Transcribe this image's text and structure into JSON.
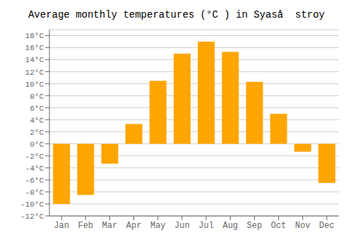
{
  "chart_data": {
    "type": "bar",
    "title": "Average monthly temperatures (°C ) in Syaså  stroy",
    "categories": [
      "Jan",
      "Feb",
      "Mar",
      "Apr",
      "May",
      "Jun",
      "Jul",
      "Aug",
      "Sep",
      "Oct",
      "Nov",
      "Dec"
    ],
    "values": [
      -10,
      -8.5,
      -3.3,
      3.3,
      10.5,
      15,
      17,
      15.3,
      10.3,
      5,
      -1.3,
      -6.5
    ],
    "color": "#FFA500",
    "ylim": [
      -12,
      19
    ],
    "yticks": [
      {
        "value": -12,
        "label": "-12°C"
      },
      {
        "value": -10,
        "label": "-10°C"
      },
      {
        "value": -8,
        "label": "-8°C"
      },
      {
        "value": -6,
        "label": "-6°C"
      },
      {
        "value": -4,
        "label": "-4°C"
      },
      {
        "value": -2,
        "label": "-2°C"
      },
      {
        "value": 0,
        "label": "0°C"
      },
      {
        "value": 2,
        "label": "2°C"
      },
      {
        "value": 4,
        "label": "4°C"
      },
      {
        "value": 6,
        "label": "6°C"
      },
      {
        "value": 8,
        "label": "8°C"
      },
      {
        "value": 10,
        "label": "10°C"
      },
      {
        "value": 12,
        "label": "12°C"
      },
      {
        "value": 14,
        "label": "14°C"
      },
      {
        "value": 16,
        "label": "16°C"
      },
      {
        "value": 18,
        "label": "18°C"
      }
    ],
    "grid": true
  }
}
